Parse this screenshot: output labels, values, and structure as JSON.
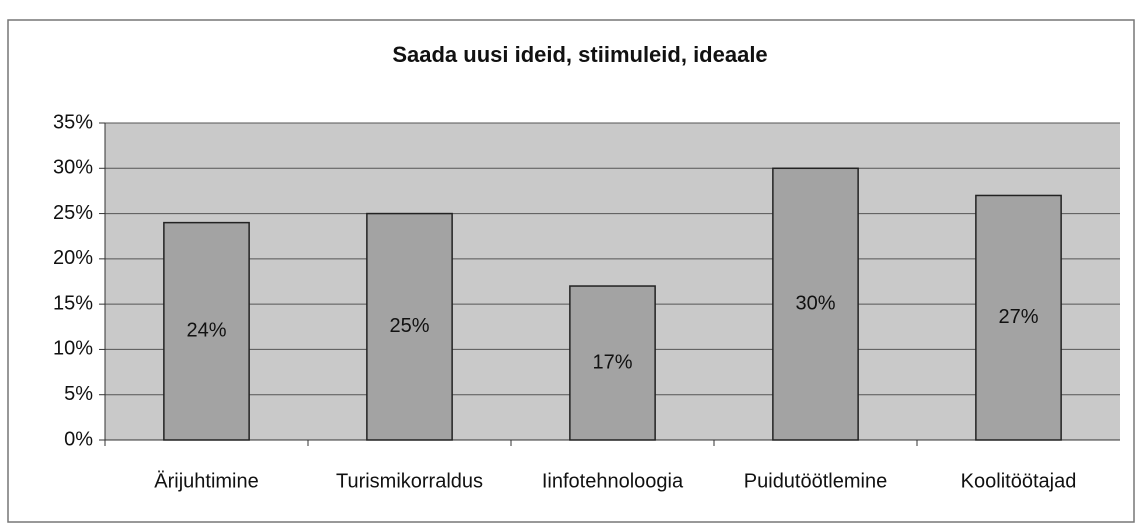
{
  "chart_data": {
    "type": "bar",
    "title": "Saada uusi ideid, stiimuleid, ideaale",
    "categories": [
      "Ärijuhtimine",
      "Turismikorraldus",
      "Iinfotehnoloogia",
      "Puidutöötlemine",
      "Koolitöötajad"
    ],
    "values": [
      24,
      25,
      17,
      30,
      27
    ],
    "value_labels": [
      "24%",
      "25%",
      "17%",
      "30%",
      "27%"
    ],
    "color": "#a3a3a3",
    "ylim": [
      0,
      35
    ],
    "yticks": [
      {
        "value": 0,
        "label": "0%"
      },
      {
        "value": 5,
        "label": "5%"
      },
      {
        "value": 10,
        "label": "10%"
      },
      {
        "value": 15,
        "label": "15%"
      },
      {
        "value": 20,
        "label": "20%"
      },
      {
        "value": 25,
        "label": "25%"
      },
      {
        "value": 30,
        "label": "30%"
      },
      {
        "value": 35,
        "label": "35%"
      }
    ],
    "grid": true
  }
}
